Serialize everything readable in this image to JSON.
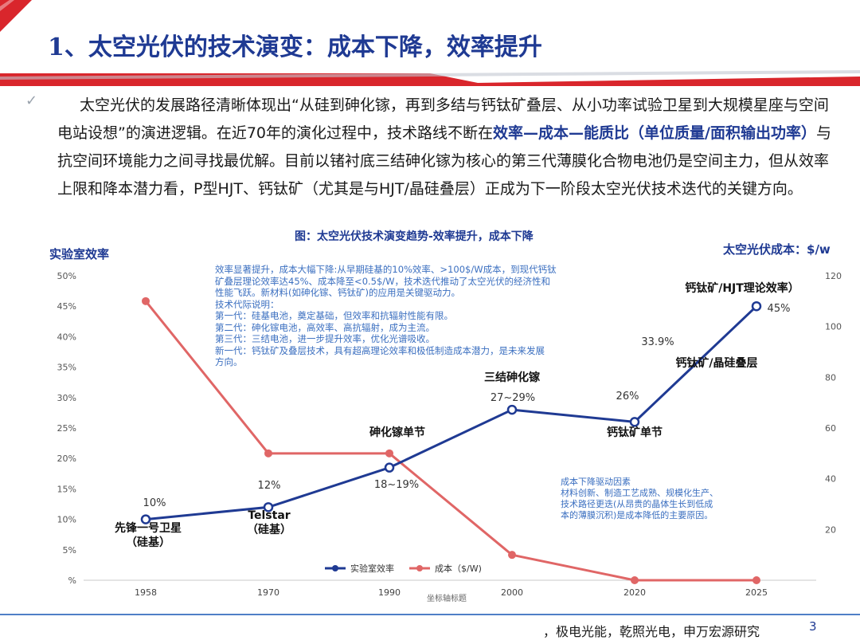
{
  "slide": {
    "title": "1、太空光伏的技术演变：成本下降，效率提升",
    "intro_parts": [
      "太空光伏的发展路径清晰体现出“从硅到砷化镓，再到多结与钙钛矿叠层、从小功率试验卫星到大规模星座与空间电站设想”的演进逻辑。在近70年的演化过程中，技术路线不断在",
      "效率—成本—能质比（单位质量/面积输出功率）",
      "与抗空间环境能力之间寻找最优解。目前以锗衬底三结砷化镓为核心的第三代薄膜化合物电池仍是空间主力，但从效率上限和降本潜力看，P型HJT、钙钛矿（尤其是与HJT/晶硅叠层）正成为下一阶段太空光伏技术迭代的关键方向。"
    ],
    "source": "，极电光能，乾照光电，申万宏源研究",
    "page_number": "3"
  },
  "colors": {
    "title": "#1f3a93",
    "efficiency_line": "#1f3a93",
    "cost_line": "#e06666",
    "note_text": "#3b6fc0",
    "header_red": "#d9262c"
  },
  "chart_data": {
    "type": "line",
    "title": "图：太空光伏技术演变趋势-效率提升，成本下降",
    "ylabel": "实验室效率",
    "y2label": "太空光伏成本：$/w",
    "xlabel": "坐标轴标题",
    "categories": [
      "1958",
      "1970",
      "1990",
      "2000",
      "2020",
      "2025"
    ],
    "y_ticks": [
      "%",
      "5%",
      "10%",
      "15%",
      "20%",
      "25%",
      "30%",
      "35%",
      "40%",
      "45%",
      "50%"
    ],
    "y_range": [
      0,
      50
    ],
    "y2_ticks": [
      "20",
      "40",
      "60",
      "80",
      "100",
      "120"
    ],
    "y2_range": [
      0,
      120
    ],
    "legend_position": "bottom",
    "series": [
      {
        "name": "实验室效率",
        "axis": "left",
        "values": [
          10,
          12,
          18.5,
          28,
          26,
          45
        ]
      },
      {
        "name": "成本（$/W)",
        "axis": "right",
        "values": [
          110,
          50,
          50,
          10,
          0,
          0
        ]
      }
    ],
    "data_labels": [
      "10%",
      "12%",
      "18~19%",
      "27~29%",
      "26%",
      "45%",
      "33.9%"
    ],
    "milestones": [
      {
        "line1": "先锋一号卫星",
        "line2": "（硅基）"
      },
      {
        "line1": "Telstar",
        "line2": "（硅基）"
      },
      {
        "line1": "砷化镓单节"
      },
      {
        "line1": "三结砷化镓"
      },
      {
        "line1": "钙钛矿单节"
      },
      {
        "line1": "钙钛矿/晶硅叠层"
      },
      {
        "line1": "钙钛矿/HJT理论效率）"
      }
    ],
    "annotations": {
      "top": [
        "效率显著提升，成本大幅下降:从早期硅基的10%效率、>100$/W成本，到现代钙钛",
        "矿叠层理论效率达45%、成本降至<0.5$/W，技术迭代推动了太空光伏的经济性和",
        "性能飞跃。新材料(如砷化镓、钙钛矿)的应用是关键驱动力。",
        "技术代际说明：",
        "第一代：硅基电池，奠定基础，但效率和抗辐射性能有限。",
        "第二代：砷化镓电池，高效率、高抗辐射，成为主流。",
        "第三代：三结电池，进一步提升效率，优化光谱吸收。",
        "新一代：钙钛矿及叠层技术，具有超高理论效率和极低制造成本潜力，是未来发展",
        "方向。"
      ],
      "bottom": [
        "成本下降驱动因素",
        "材料创新、制造工艺成熟、规模化生产、",
        "技术路径更迭(从昂贵的晶体生长到低成",
        "本的薄膜沉积)是成本降低的主要原因。"
      ]
    }
  }
}
